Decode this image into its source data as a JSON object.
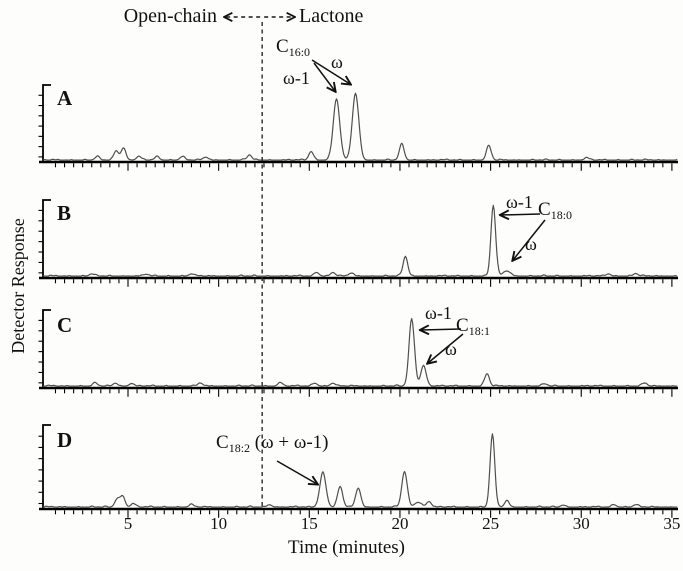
{
  "figure": {
    "header": {
      "left_label": "Open-chain",
      "right_label": "Lactone"
    },
    "y_axis": {
      "label": "Detector Response"
    },
    "x_axis": {
      "label": "Time (minutes)",
      "ticks": [
        5,
        10,
        15,
        20,
        25,
        30,
        35
      ],
      "range": [
        0.3,
        35
      ],
      "minor_tick_step": 0.5,
      "divider_time": 12.4
    },
    "colors": {
      "trace": "#4f4f4f",
      "axis": "#000000",
      "annotation": "#1a1a1a",
      "background": "#fdfdfc"
    }
  },
  "chart_data": [
    {
      "type": "line",
      "panel_label": "A",
      "series_name": "chromatogram-A",
      "x_unit": "minutes",
      "y_unit": "detector response (arbitrary)",
      "labels": {
        "compound": "C",
        "compound_sub": "16:0",
        "omega": "ω",
        "omega_minus_1": "ω-1"
      },
      "peaks": [
        {
          "t": 3.3,
          "h": 0.045
        },
        {
          "t": 4.35,
          "h": 0.13
        },
        {
          "t": 4.75,
          "h": 0.17
        },
        {
          "t": 5.6,
          "h": 0.05
        },
        {
          "t": 6.6,
          "h": 0.045
        },
        {
          "t": 8.0,
          "h": 0.05
        },
        {
          "t": 9.3,
          "h": 0.04
        },
        {
          "t": 11.7,
          "h": 0.07
        },
        {
          "t": 15.1,
          "h": 0.12
        },
        {
          "t": 16.5,
          "h": 0.85,
          "w": 0.18,
          "label": "ω-1"
        },
        {
          "t": 17.55,
          "h": 0.92,
          "w": 0.18,
          "label": "ω"
        },
        {
          "t": 20.1,
          "h": 0.22
        },
        {
          "t": 24.9,
          "h": 0.2
        },
        {
          "t": 30.3,
          "h": 0.03
        }
      ]
    },
    {
      "type": "line",
      "panel_label": "B",
      "series_name": "chromatogram-B",
      "x_unit": "minutes",
      "y_unit": "detector response (arbitrary)",
      "labels": {
        "compound": "C",
        "compound_sub": "18:0",
        "omega": "ω",
        "omega_minus_1": "ω-1"
      },
      "peaks": [
        {
          "t": 3.0,
          "h": 0.03
        },
        {
          "t": 6.0,
          "h": 0.025
        },
        {
          "t": 8.5,
          "h": 0.03
        },
        {
          "t": 15.4,
          "h": 0.05
        },
        {
          "t": 16.3,
          "h": 0.05
        },
        {
          "t": 17.3,
          "h": 0.04
        },
        {
          "t": 20.3,
          "h": 0.27
        },
        {
          "t": 25.15,
          "h": 0.97,
          "w": 0.13,
          "label": "ω-1"
        },
        {
          "t": 25.9,
          "h": 0.07,
          "w": 0.2,
          "label": "ω"
        },
        {
          "t": 31.5,
          "h": 0.03
        },
        {
          "t": 33.0,
          "h": 0.035
        }
      ]
    },
    {
      "type": "line",
      "panel_label": "C",
      "series_name": "chromatogram-C",
      "x_unit": "minutes",
      "y_unit": "detector response (arbitrary)",
      "labels": {
        "compound": "C",
        "compound_sub": "18:1",
        "omega": "ω",
        "omega_minus_1": "ω-1"
      },
      "peaks": [
        {
          "t": 3.2,
          "h": 0.04
        },
        {
          "t": 4.3,
          "h": 0.04
        },
        {
          "t": 5.2,
          "h": 0.035
        },
        {
          "t": 9.0,
          "h": 0.04
        },
        {
          "t": 13.4,
          "h": 0.05
        },
        {
          "t": 15.3,
          "h": 0.04
        },
        {
          "t": 16.3,
          "h": 0.04
        },
        {
          "t": 20.65,
          "h": 0.92,
          "w": 0.15,
          "label": "ω-1"
        },
        {
          "t": 21.3,
          "h": 0.28,
          "w": 0.15,
          "label": "ω"
        },
        {
          "t": 24.8,
          "h": 0.17,
          "w": 0.13
        },
        {
          "t": 28.0,
          "h": 0.03
        },
        {
          "t": 33.5,
          "h": 0.04
        }
      ]
    },
    {
      "type": "line",
      "panel_label": "D",
      "series_name": "chromatogram-D",
      "x_unit": "minutes",
      "y_unit": "detector response (arbitrary)",
      "labels": {
        "compound": "C",
        "compound_sub": "18:2",
        "suffix": " (ω + ω-1)"
      },
      "peaks": [
        {
          "t": 4.4,
          "h": 0.1
        },
        {
          "t": 4.7,
          "h": 0.14
        },
        {
          "t": 5.3,
          "h": 0.045
        },
        {
          "t": 8.5,
          "h": 0.03
        },
        {
          "t": 12.8,
          "h": 0.03
        },
        {
          "t": 15.75,
          "h": 0.44,
          "w": 0.17,
          "label": "ω + ω-1"
        },
        {
          "t": 16.7,
          "h": 0.26,
          "w": 0.14
        },
        {
          "t": 17.7,
          "h": 0.24,
          "w": 0.14
        },
        {
          "t": 20.25,
          "h": 0.45,
          "w": 0.15
        },
        {
          "t": 21.0,
          "h": 0.06,
          "w": 0.2
        },
        {
          "t": 21.6,
          "h": 0.07
        },
        {
          "t": 25.1,
          "h": 0.92,
          "w": 0.13
        },
        {
          "t": 25.9,
          "h": 0.08
        },
        {
          "t": 29.0,
          "h": 0.025
        },
        {
          "t": 31.8,
          "h": 0.03
        },
        {
          "t": 33.0,
          "h": 0.03
        }
      ]
    }
  ]
}
